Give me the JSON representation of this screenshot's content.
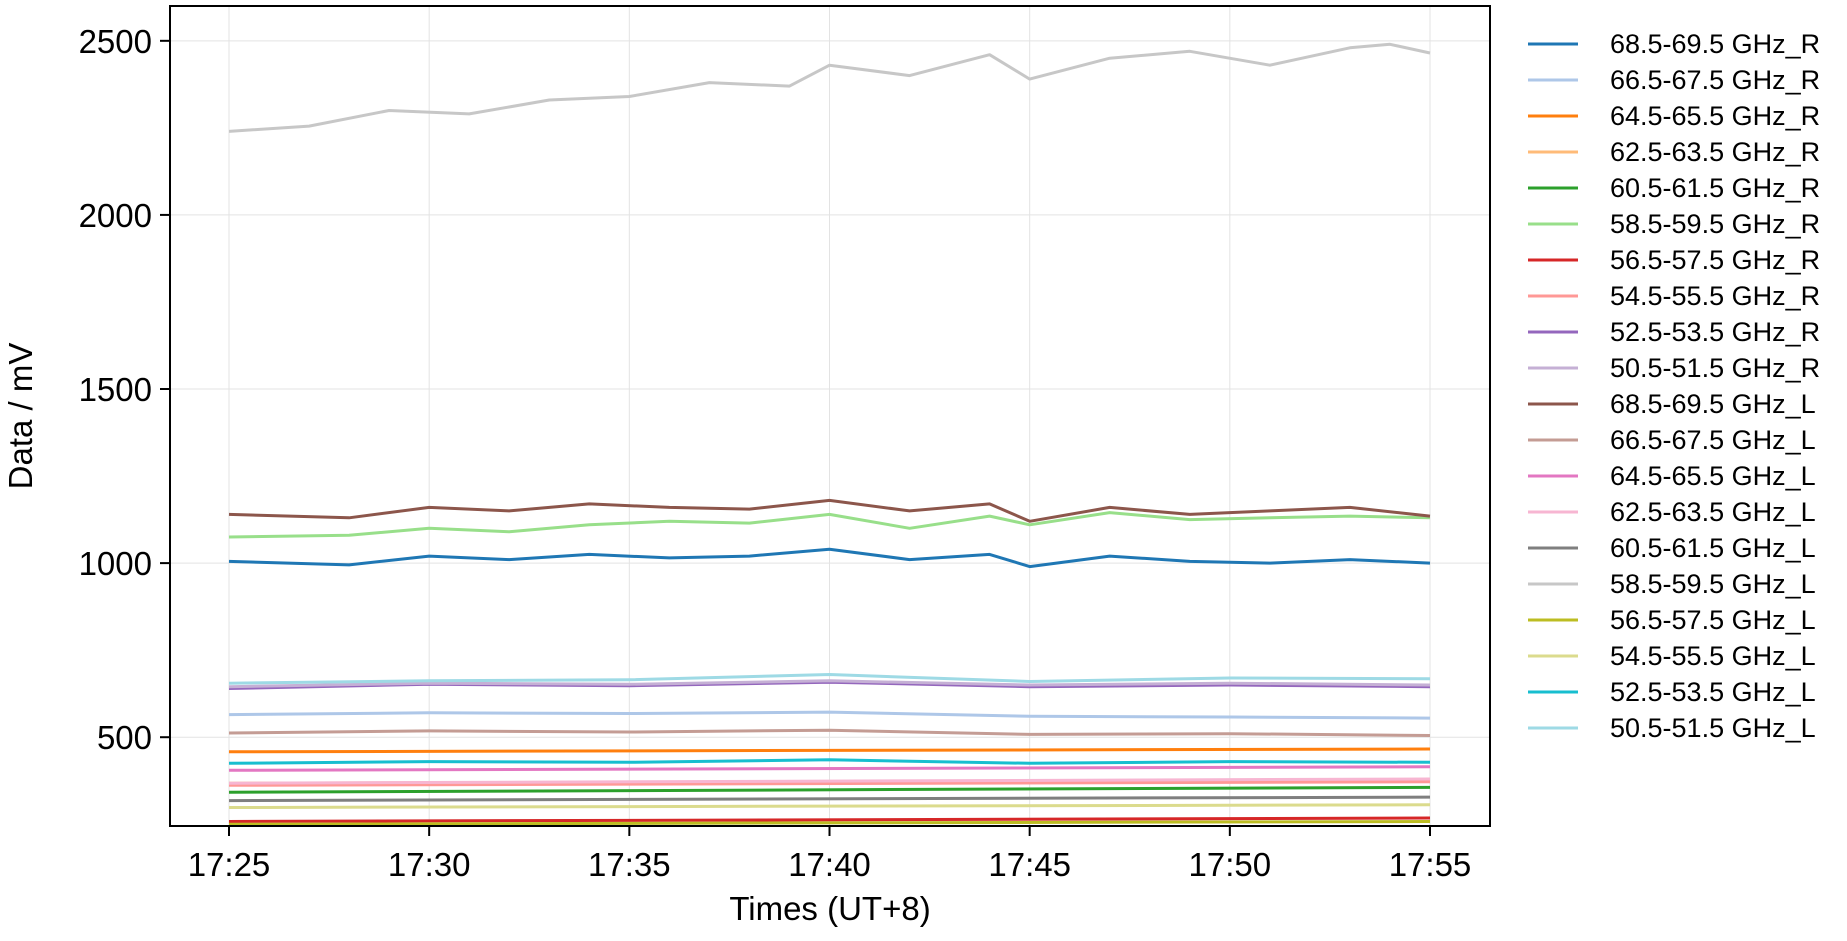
{
  "chart_data": {
    "type": "line",
    "title": "",
    "xlabel": "Times (UT+8)",
    "ylabel": "Data / mV",
    "x_ticks": [
      "17:25",
      "17:30",
      "17:35",
      "17:40",
      "17:45",
      "17:50",
      "17:55"
    ],
    "x_range": [
      "17:25",
      "17:55"
    ],
    "y_ticks": [
      500,
      1000,
      1500,
      2000,
      2500
    ],
    "ylim": [
      245,
      2600
    ],
    "grid": true,
    "legend_position": "outside-right",
    "series": [
      {
        "name": "68.5-69.5 GHz_R",
        "color": "#1f77b4",
        "x": [
          "17:25",
          "17:28",
          "17:30",
          "17:32",
          "17:34",
          "17:36",
          "17:38",
          "17:40",
          "17:42",
          "17:44",
          "17:45",
          "17:47",
          "17:49",
          "17:51",
          "17:53",
          "17:55"
        ],
        "values": [
          1005,
          995,
          1020,
          1010,
          1025,
          1015,
          1020,
          1040,
          1010,
          1025,
          990,
          1020,
          1005,
          1000,
          1010,
          1000
        ]
      },
      {
        "name": "66.5-67.5 GHz_R",
        "color": "#aec7e8",
        "x": [
          "17:25",
          "17:30",
          "17:35",
          "17:40",
          "17:45",
          "17:50",
          "17:55"
        ],
        "values": [
          565,
          570,
          568,
          572,
          560,
          558,
          555
        ]
      },
      {
        "name": "64.5-65.5 GHz_R",
        "color": "#ff7f0e",
        "x": [
          "17:25",
          "17:55"
        ],
        "values": [
          458,
          466
        ]
      },
      {
        "name": "62.5-63.5 GHz_R",
        "color": "#ffbb78",
        "x": [
          "17:25",
          "17:55"
        ],
        "values": [
          368,
          376
        ]
      },
      {
        "name": "60.5-61.5 GHz_R",
        "color": "#2ca02c",
        "x": [
          "17:25",
          "17:55"
        ],
        "values": [
          342,
          356
        ]
      },
      {
        "name": "58.5-59.5 GHz_R",
        "color": "#98df8a",
        "x": [
          "17:25",
          "17:28",
          "17:30",
          "17:32",
          "17:34",
          "17:36",
          "17:38",
          "17:40",
          "17:42",
          "17:44",
          "17:45",
          "17:47",
          "17:49",
          "17:51",
          "17:53",
          "17:55"
        ],
        "values": [
          1075,
          1080,
          1100,
          1090,
          1110,
          1120,
          1115,
          1140,
          1100,
          1135,
          1110,
          1145,
          1125,
          1130,
          1135,
          1130
        ]
      },
      {
        "name": "56.5-57.5 GHz_R",
        "color": "#d62728",
        "x": [
          "17:25",
          "17:55"
        ],
        "values": [
          258,
          268
        ]
      },
      {
        "name": "54.5-55.5 GHz_R",
        "color": "#ff9896",
        "x": [
          "17:25",
          "17:55"
        ],
        "values": [
          362,
          372
        ]
      },
      {
        "name": "52.5-53.5 GHz_R",
        "color": "#9467bd",
        "x": [
          "17:25",
          "17:30",
          "17:35",
          "17:40",
          "17:45",
          "17:50",
          "17:55"
        ],
        "values": [
          640,
          652,
          648,
          658,
          645,
          650,
          645
        ]
      },
      {
        "name": "50.5-51.5 GHz_R",
        "color": "#c5b0d5",
        "x": [
          "17:25",
          "17:30",
          "17:35",
          "17:40",
          "17:45",
          "17:50",
          "17:55"
        ],
        "values": [
          645,
          655,
          652,
          662,
          650,
          655,
          650
        ]
      },
      {
        "name": "68.5-69.5 GHz_L",
        "color": "#8c564b",
        "x": [
          "17:25",
          "17:28",
          "17:30",
          "17:32",
          "17:34",
          "17:36",
          "17:38",
          "17:40",
          "17:42",
          "17:44",
          "17:45",
          "17:47",
          "17:49",
          "17:51",
          "17:53",
          "17:55"
        ],
        "values": [
          1140,
          1130,
          1160,
          1150,
          1170,
          1160,
          1155,
          1180,
          1150,
          1170,
          1120,
          1160,
          1140,
          1150,
          1160,
          1135
        ]
      },
      {
        "name": "66.5-67.5 GHz_L",
        "color": "#c49c94",
        "x": [
          "17:25",
          "17:30",
          "17:35",
          "17:40",
          "17:45",
          "17:50",
          "17:55"
        ],
        "values": [
          512,
          518,
          515,
          520,
          508,
          510,
          505
        ]
      },
      {
        "name": "64.5-65.5 GHz_L",
        "color": "#e377c2",
        "x": [
          "17:25",
          "17:55"
        ],
        "values": [
          405,
          415
        ]
      },
      {
        "name": "62.5-63.5 GHz_L",
        "color": "#f7b6d2",
        "x": [
          "17:25",
          "17:55"
        ],
        "values": [
          368,
          380
        ]
      },
      {
        "name": "60.5-61.5 GHz_L",
        "color": "#7f7f7f",
        "x": [
          "17:25",
          "17:55"
        ],
        "values": [
          318,
          328
        ]
      },
      {
        "name": "58.5-59.5 GHz_L",
        "color": "#c7c7c7",
        "x": [
          "17:25",
          "17:27",
          "17:29",
          "17:31",
          "17:33",
          "17:35",
          "17:37",
          "17:39",
          "17:40",
          "17:42",
          "17:44",
          "17:45",
          "17:47",
          "17:49",
          "17:51",
          "17:53",
          "17:54",
          "17:55"
        ],
        "values": [
          2240,
          2255,
          2300,
          2290,
          2330,
          2340,
          2380,
          2370,
          2430,
          2400,
          2460,
          2390,
          2450,
          2470,
          2430,
          2480,
          2490,
          2465
        ]
      },
      {
        "name": "56.5-57.5 GHz_L",
        "color": "#bcbd22",
        "x": [
          "17:25",
          "17:55"
        ],
        "values": [
          250,
          258
        ]
      },
      {
        "name": "54.5-55.5 GHz_L",
        "color": "#dbdb8d",
        "x": [
          "17:25",
          "17:55"
        ],
        "values": [
          298,
          306
        ]
      },
      {
        "name": "52.5-53.5 GHz_L",
        "color": "#17becf",
        "x": [
          "17:25",
          "17:30",
          "17:35",
          "17:40",
          "17:45",
          "17:50",
          "17:55"
        ],
        "values": [
          425,
          430,
          428,
          435,
          425,
          430,
          428
        ]
      },
      {
        "name": "50.5-51.5 GHz_L",
        "color": "#9edae5",
        "x": [
          "17:25",
          "17:30",
          "17:35",
          "17:40",
          "17:45",
          "17:50",
          "17:55"
        ],
        "values": [
          655,
          662,
          665,
          680,
          660,
          670,
          668
        ]
      }
    ]
  }
}
